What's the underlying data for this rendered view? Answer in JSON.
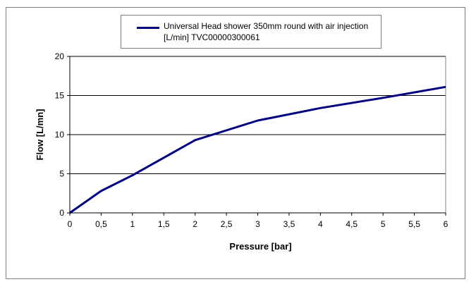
{
  "chart_data": {
    "type": "line",
    "title": "",
    "xlabel": "Pressure [bar]",
    "ylabel": "Flow [L/mn]",
    "xlim": [
      0,
      6
    ],
    "ylim": [
      0,
      20
    ],
    "x_ticks": [
      0,
      0.5,
      1,
      1.5,
      2,
      2.5,
      3,
      3.5,
      4,
      4.5,
      5,
      5.5,
      6
    ],
    "x_tick_labels": [
      "0",
      "0,5",
      "1",
      "1,5",
      "2",
      "2,5",
      "3",
      "3,5",
      "4",
      "4,5",
      "5",
      "5,5",
      "6"
    ],
    "y_ticks": [
      0,
      5,
      10,
      15,
      20
    ],
    "y_tick_labels": [
      "0",
      "5",
      "10",
      "15",
      "20"
    ],
    "grid": "horizontal",
    "legend_position": "top",
    "series": [
      {
        "name": "Universal Head shower 350mm round with air injection [L/min] TVC00000300061",
        "color": "#000080",
        "x": [
          0,
          0.5,
          1,
          2,
          3,
          4,
          5,
          6
        ],
        "values": [
          0,
          2.8,
          4.8,
          9.3,
          11.8,
          13.4,
          14.7,
          16.1
        ]
      }
    ]
  }
}
